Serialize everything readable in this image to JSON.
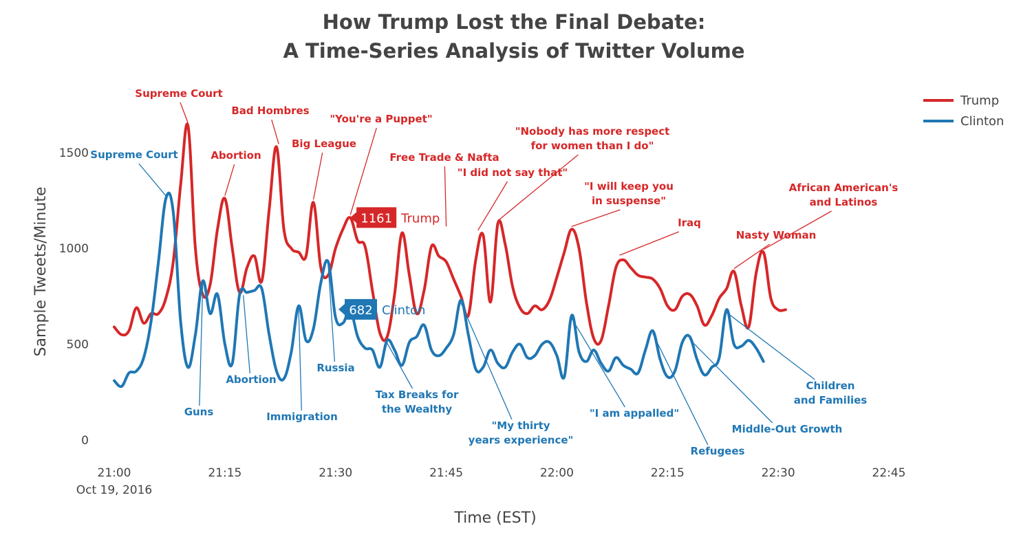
{
  "chart_data": {
    "type": "line",
    "title": [
      "How Trump Lost the Final Debate:",
      "A Time-Series Analysis of Twitter Volume"
    ],
    "xlabel": "Time (EST)",
    "ylabel": "Sample Tweets/Minute",
    "xlim": [
      0,
      105
    ],
    "ylim": [
      0,
      1650
    ],
    "x_ticks": [
      {
        "value": 0,
        "label": "21:00",
        "sublabel": "Oct 19, 2016"
      },
      {
        "value": 15,
        "label": "21:15"
      },
      {
        "value": 30,
        "label": "21:30"
      },
      {
        "value": 45,
        "label": "21:45"
      },
      {
        "value": 60,
        "label": "22:00"
      },
      {
        "value": 75,
        "label": "22:15"
      },
      {
        "value": 90,
        "label": "22:30"
      },
      {
        "value": 105,
        "label": "22:45"
      }
    ],
    "y_ticks": [
      0,
      500,
      1000,
      1500
    ],
    "legend": {
      "position": "top-right",
      "entries": [
        "Trump",
        "Clinton"
      ]
    },
    "colors": {
      "Trump": "#d62728",
      "Clinton": "#1f77b4"
    },
    "series": [
      {
        "name": "Trump",
        "points": [
          [
            0,
            590
          ],
          [
            1,
            550
          ],
          [
            2,
            570
          ],
          [
            3,
            690
          ],
          [
            4,
            610
          ],
          [
            5,
            660
          ],
          [
            6,
            660
          ],
          [
            7,
            740
          ],
          [
            8,
            930
          ],
          [
            9,
            1330
          ],
          [
            10,
            1640
          ],
          [
            11,
            1000
          ],
          [
            12,
            760
          ],
          [
            13,
            810
          ],
          [
            14,
            1100
          ],
          [
            15,
            1260
          ],
          [
            16,
            1000
          ],
          [
            17,
            770
          ],
          [
            18,
            900
          ],
          [
            19,
            960
          ],
          [
            20,
            830
          ],
          [
            21,
            1200
          ],
          [
            22,
            1530
          ],
          [
            23,
            1100
          ],
          [
            24,
            1000
          ],
          [
            25,
            980
          ],
          [
            26,
            960
          ],
          [
            27,
            1240
          ],
          [
            28,
            900
          ],
          [
            29,
            860
          ],
          [
            30,
            1000
          ],
          [
            31,
            1100
          ],
          [
            32,
            1160
          ],
          [
            33,
            1040
          ],
          [
            34,
            1010
          ],
          [
            35,
            780
          ],
          [
            36,
            560
          ],
          [
            37,
            540
          ],
          [
            38,
            760
          ],
          [
            39,
            1080
          ],
          [
            40,
            860
          ],
          [
            41,
            660
          ],
          [
            42,
            780
          ],
          [
            43,
            1010
          ],
          [
            44,
            960
          ],
          [
            45,
            930
          ],
          [
            46,
            840
          ],
          [
            47,
            750
          ],
          [
            48,
            650
          ],
          [
            49,
            940
          ],
          [
            50,
            1070
          ],
          [
            51,
            720
          ],
          [
            52,
            1130
          ],
          [
            53,
            1020
          ],
          [
            54,
            800
          ],
          [
            55,
            690
          ],
          [
            56,
            660
          ],
          [
            57,
            700
          ],
          [
            58,
            680
          ],
          [
            59,
            730
          ],
          [
            60,
            850
          ],
          [
            61,
            980
          ],
          [
            62,
            1100
          ],
          [
            63,
            1000
          ],
          [
            64,
            720
          ],
          [
            65,
            530
          ],
          [
            66,
            520
          ],
          [
            67,
            700
          ],
          [
            68,
            900
          ],
          [
            69,
            940
          ],
          [
            70,
            900
          ],
          [
            71,
            860
          ],
          [
            72,
            850
          ],
          [
            73,
            840
          ],
          [
            74,
            790
          ],
          [
            75,
            700
          ],
          [
            76,
            680
          ],
          [
            77,
            750
          ],
          [
            78,
            760
          ],
          [
            79,
            700
          ],
          [
            80,
            600
          ],
          [
            81,
            650
          ],
          [
            82,
            740
          ],
          [
            83,
            790
          ],
          [
            84,
            880
          ],
          [
            85,
            700
          ],
          [
            86,
            590
          ],
          [
            87,
            870
          ],
          [
            88,
            980
          ],
          [
            89,
            740
          ],
          [
            90,
            680
          ],
          [
            91,
            680
          ]
        ]
      },
      {
        "name": "Clinton",
        "points": [
          [
            0,
            310
          ],
          [
            1,
            280
          ],
          [
            2,
            350
          ],
          [
            3,
            360
          ],
          [
            4,
            430
          ],
          [
            5,
            620
          ],
          [
            6,
            930
          ],
          [
            7,
            1260
          ],
          [
            8,
            1190
          ],
          [
            9,
            620
          ],
          [
            10,
            380
          ],
          [
            11,
            550
          ],
          [
            12,
            830
          ],
          [
            13,
            660
          ],
          [
            14,
            760
          ],
          [
            15,
            500
          ],
          [
            16,
            400
          ],
          [
            17,
            760
          ],
          [
            18,
            770
          ],
          [
            19,
            780
          ],
          [
            20,
            790
          ],
          [
            21,
            550
          ],
          [
            22,
            360
          ],
          [
            23,
            320
          ],
          [
            24,
            460
          ],
          [
            25,
            700
          ],
          [
            26,
            520
          ],
          [
            27,
            580
          ],
          [
            28,
            820
          ],
          [
            29,
            930
          ],
          [
            30,
            640
          ],
          [
            31,
            610
          ],
          [
            32,
            680
          ],
          [
            33,
            540
          ],
          [
            34,
            480
          ],
          [
            35,
            470
          ],
          [
            36,
            380
          ],
          [
            37,
            520
          ],
          [
            38,
            470
          ],
          [
            39,
            390
          ],
          [
            40,
            510
          ],
          [
            41,
            540
          ],
          [
            42,
            600
          ],
          [
            43,
            470
          ],
          [
            44,
            440
          ],
          [
            45,
            480
          ],
          [
            46,
            550
          ],
          [
            47,
            730
          ],
          [
            48,
            550
          ],
          [
            49,
            370
          ],
          [
            50,
            380
          ],
          [
            51,
            470
          ],
          [
            52,
            400
          ],
          [
            53,
            380
          ],
          [
            54,
            460
          ],
          [
            55,
            500
          ],
          [
            56,
            430
          ],
          [
            57,
            440
          ],
          [
            58,
            500
          ],
          [
            59,
            510
          ],
          [
            60,
            440
          ],
          [
            61,
            330
          ],
          [
            62,
            650
          ],
          [
            63,
            460
          ],
          [
            64,
            410
          ],
          [
            65,
            470
          ],
          [
            66,
            400
          ],
          [
            67,
            360
          ],
          [
            68,
            430
          ],
          [
            69,
            390
          ],
          [
            70,
            370
          ],
          [
            71,
            350
          ],
          [
            72,
            470
          ],
          [
            73,
            570
          ],
          [
            74,
            420
          ],
          [
            75,
            330
          ],
          [
            76,
            360
          ],
          [
            77,
            510
          ],
          [
            78,
            540
          ],
          [
            79,
            420
          ],
          [
            80,
            340
          ],
          [
            81,
            380
          ],
          [
            82,
            430
          ],
          [
            83,
            680
          ],
          [
            84,
            500
          ],
          [
            85,
            490
          ],
          [
            86,
            520
          ],
          [
            87,
            480
          ],
          [
            88,
            410
          ]
        ]
      }
    ],
    "hover_labels": [
      {
        "series": "Trump",
        "x": 32,
        "y": 1161,
        "value": "1161",
        "name": "Trump"
      },
      {
        "series": "Clinton",
        "x": 30.4,
        "y": 682,
        "value": "682",
        "name": "Clinton"
      }
    ],
    "annotations": [
      {
        "series": "Trump",
        "lines": [
          "Supreme Court"
        ],
        "x": 10,
        "y": 1640
      },
      {
        "series": "Trump",
        "lines": [
          "Bad Hombres"
        ],
        "x": 22.3,
        "y": 1530
      },
      {
        "series": "Trump",
        "lines": [
          "Abortion"
        ],
        "x": 15,
        "y": 1260
      },
      {
        "series": "Trump",
        "lines": [
          "Big League"
        ],
        "x": 27,
        "y": 1240
      },
      {
        "series": "Trump",
        "lines": [
          "\"You're a Puppet\""
        ],
        "x": 32,
        "y": 1160
      },
      {
        "series": "Trump",
        "lines": [
          "Free Trade & Nafta"
        ],
        "x": 45,
        "y": 1100
      },
      {
        "series": "Trump",
        "lines": [
          "\"I did not say that\""
        ],
        "x": 49.3,
        "y": 1080
      },
      {
        "series": "Trump",
        "lines": [
          "\"Nobody has more respect",
          "for women than I do\""
        ],
        "x": 52,
        "y": 1130
      },
      {
        "series": "Trump",
        "lines": [
          "\"I will keep you",
          "in suspense\""
        ],
        "x": 62,
        "y": 1100
      },
      {
        "series": "Trump",
        "lines": [
          "Iraq"
        ],
        "x": 68.5,
        "y": 950
      },
      {
        "series": "Trump",
        "lines": [
          "Nasty Woman"
        ],
        "x": 84,
        "y": 880
      },
      {
        "series": "Trump",
        "lines": [
          "African American's",
          "and Latinos"
        ],
        "x": 88,
        "y": 980
      },
      {
        "series": "Clinton",
        "lines": [
          "Supreme Court"
        ],
        "x": 7,
        "y": 1260
      },
      {
        "series": "Clinton",
        "lines": [
          "Guns"
        ],
        "x": 12,
        "y": 830
      },
      {
        "series": "Clinton",
        "lines": [
          "Abortion"
        ],
        "x": 17.5,
        "y": 770
      },
      {
        "series": "Clinton",
        "lines": [
          "Immigration"
        ],
        "x": 25,
        "y": 700
      },
      {
        "series": "Clinton",
        "lines": [
          "Russia"
        ],
        "x": 29,
        "y": 930
      },
      {
        "series": "Clinton",
        "lines": [
          "Tax Breaks for",
          "the Wealthy"
        ],
        "x": 37,
        "y": 520
      },
      {
        "series": "Clinton",
        "lines": [
          "\"My thirty",
          "years experience\""
        ],
        "x": 47,
        "y": 730
      },
      {
        "series": "Clinton",
        "lines": [
          "\"I am appalled\""
        ],
        "x": 62,
        "y": 650
      },
      {
        "series": "Clinton",
        "lines": [
          "Refugees"
        ],
        "x": 73,
        "y": 570
      },
      {
        "series": "Clinton",
        "lines": [
          "Middle-Out Growth"
        ],
        "x": 78,
        "y": 540
      },
      {
        "series": "Clinton",
        "lines": [
          "Children",
          "and Families"
        ],
        "x": 83,
        "y": 680
      }
    ]
  }
}
